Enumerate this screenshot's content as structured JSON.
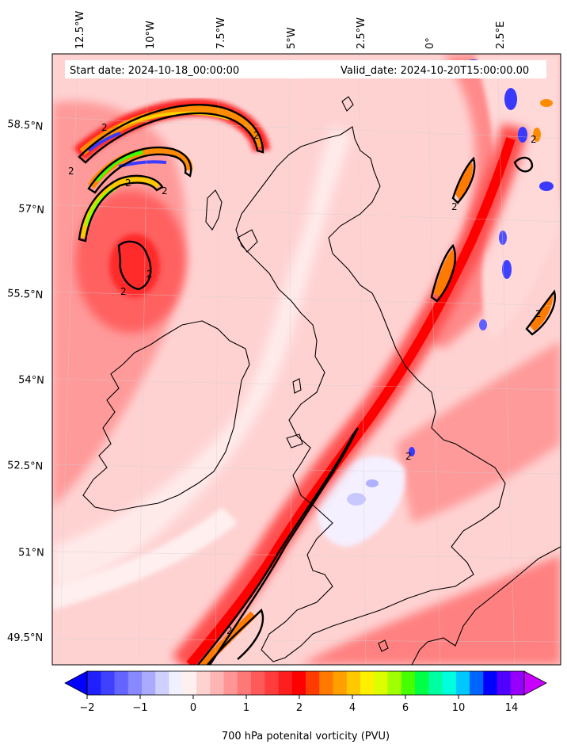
{
  "header": {
    "start_date": "Start date: 2024-10-18_00:00:00",
    "valid_date": "Valid_date: 2024-10-20T15:00:00.00"
  },
  "map": {
    "lon_labels": [
      "12.5°W",
      "10°W",
      "7.5°W",
      "5°W",
      "2.5°W",
      "0°",
      "2.5°E"
    ],
    "lat_labels": [
      "58.5°N",
      "57°N",
      "55.5°N",
      "54°N",
      "52.5°N",
      "51°N",
      "49.5°N"
    ],
    "contour_level": "2",
    "colors": {
      "background": "#ffd2d2",
      "light": "#ffe6e6",
      "medium": "#ff8c8c",
      "strong": "#ff3030",
      "red": "#ff0000",
      "orange": "#ff8c00",
      "yellow": "#ffe600",
      "green": "#3cff00",
      "blue": "#2a2aff",
      "white": "#ffffff"
    }
  },
  "colorbar": {
    "label": "700 hPa potenital vorticity (PVU)",
    "ticks": [
      "−2",
      "−1",
      "0",
      "1",
      "2",
      "4",
      "6",
      "10",
      "14"
    ],
    "colors": [
      "#0000ff",
      "#2020ff",
      "#4040ff",
      "#6464ff",
      "#8888ff",
      "#aaaaff",
      "#d0d0ff",
      "#f0f0ff",
      "#fff0f0",
      "#ffd2d2",
      "#ffb4b4",
      "#ff9696",
      "#ff7878",
      "#ff5a5a",
      "#ff3c3c",
      "#ff1e1e",
      "#ff0000",
      "#ff3c00",
      "#ff7800",
      "#ffa000",
      "#ffc800",
      "#fff000",
      "#dcff00",
      "#a0ff00",
      "#46ff00",
      "#00ff46",
      "#00ffa0",
      "#00ffdc",
      "#00c8ff",
      "#0064ff",
      "#0000ff",
      "#5000ff",
      "#9600ff",
      "#c800ff"
    ]
  }
}
